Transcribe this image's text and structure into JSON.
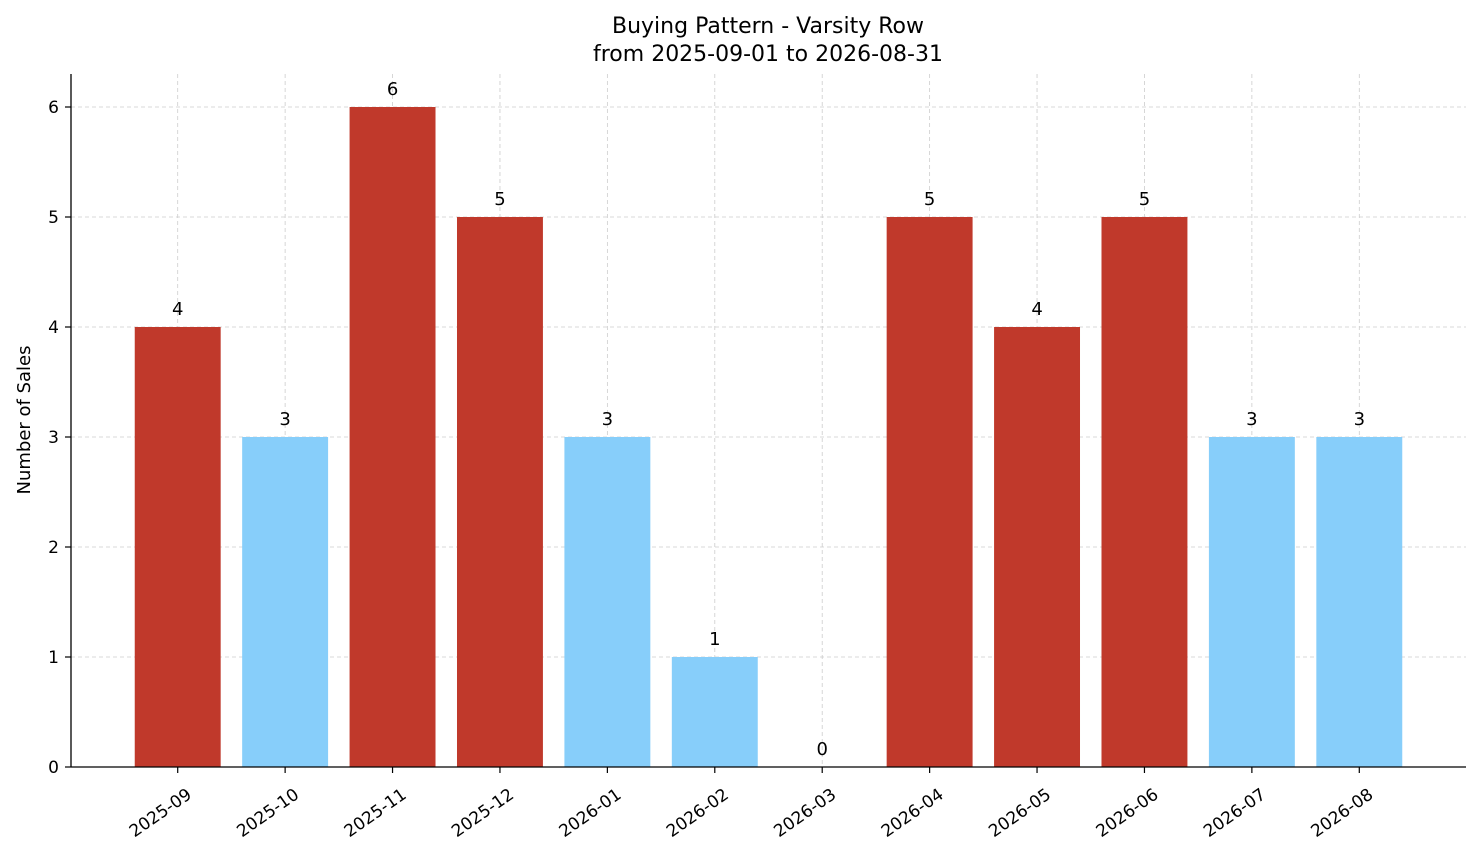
{
  "chart_data": {
    "type": "bar",
    "title": "Buying Pattern - Varsity Row",
    "subtitle": "from 2025-09-01 to 2026-08-31",
    "xlabel": "",
    "ylabel": "Number of Sales",
    "categories": [
      "2025-09",
      "2025-10",
      "2025-11",
      "2025-12",
      "2026-01",
      "2026-02",
      "2026-03",
      "2026-04",
      "2026-05",
      "2026-06",
      "2026-07",
      "2026-08"
    ],
    "values": [
      4,
      3,
      6,
      5,
      3,
      1,
      0,
      5,
      4,
      5,
      3,
      3
    ],
    "data_labels": [
      "4",
      "3",
      "6",
      "5",
      "3",
      "1",
      "0",
      "5",
      "4",
      "5",
      "3",
      "3"
    ],
    "ylim": [
      0,
      6.3
    ],
    "yticks": [
      "0",
      "1",
      "2",
      "3",
      "4",
      "5",
      "6"
    ],
    "grid": true,
    "colors": {
      "high": "#c0392b",
      "low": "#87cefa",
      "high_threshold": 4
    }
  }
}
